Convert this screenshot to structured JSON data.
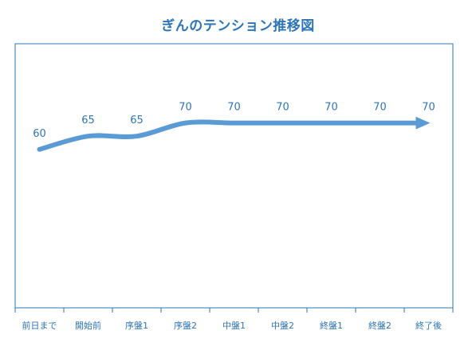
{
  "chart_data": {
    "type": "line",
    "title": "ぎんのテンション推移図",
    "xlabel": "",
    "ylabel": "",
    "categories": [
      "前日まで",
      "開始前",
      "序盤1",
      "序盤2",
      "中盤1",
      "中盤2",
      "終盤1",
      "終盤2",
      "終了後"
    ],
    "series": [
      {
        "values": [
          60,
          65,
          65,
          70,
          70,
          70,
          70,
          70,
          70
        ]
      }
    ],
    "ylim": [
      0,
      100
    ],
    "grid": false,
    "legend": "none",
    "line_end": "arrow",
    "smooth": true,
    "data_labels": true
  },
  "colors": {
    "line": "#5b9bd5",
    "text": "#2e75b6",
    "axis": "#2e75b6"
  }
}
